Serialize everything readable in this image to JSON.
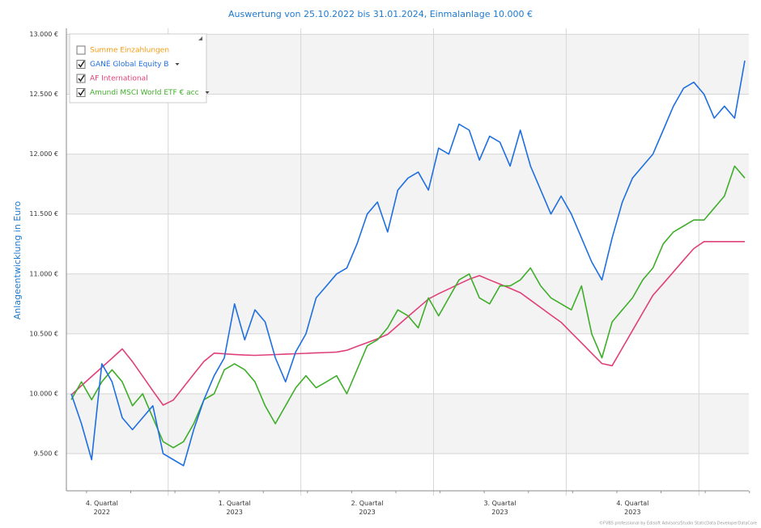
{
  "chart_data": {
    "type": "line",
    "title": "Auswertung von 25.10.2022 bis 31.01.2024, Einmalanlage 10.000 €",
    "y_label": "Anlageentwicklung  in Euro",
    "footer": "©FVBS professional by Edisoft Advisors/Studio StaticData DeveloperDataCore",
    "categories": [
      null,
      null,
      null,
      "4. Quartal 2022",
      null,
      null,
      null,
      null,
      null,
      null,
      null,
      null,
      null,
      null,
      null,
      null,
      "1. Quartal 2023",
      null,
      null,
      null,
      null,
      null,
      null,
      null,
      null,
      null,
      null,
      null,
      null,
      "2. Quartal 2023",
      null,
      null,
      null,
      null,
      null,
      null,
      null,
      null,
      null,
      null,
      null,
      null,
      "3. Quartal 2023",
      null,
      null,
      null,
      null,
      null,
      null,
      null,
      null,
      null,
      null,
      null,
      null,
      "4. Quartal 2023",
      null,
      null,
      null,
      null,
      null,
      null,
      null,
      null,
      null,
      null,
      null
    ],
    "ylim": [
      9190,
      13050
    ],
    "yticks": [
      {
        "value": 9500,
        "label": "9.500 €"
      },
      {
        "value": 10000,
        "label": "10.000 €"
      },
      {
        "value": 10500,
        "label": "10.500 €"
      },
      {
        "value": 11000,
        "label": "11.000 €"
      },
      {
        "value": 11500,
        "label": "11.500 €"
      },
      {
        "value": 12000,
        "label": "12.000 €"
      },
      {
        "value": 12500,
        "label": "12.500 €"
      },
      {
        "value": 13000,
        "label": "13.000 €"
      }
    ],
    "grid": true,
    "legend": "upper left",
    "series": [
      {
        "name": "Summe Einzahlungen",
        "color": "#f39c12",
        "visible": false,
        "menu": false,
        "values": [
          null,
          null,
          null,
          null,
          null,
          null,
          null,
          null,
          null,
          null,
          null,
          null,
          null,
          null,
          null,
          null,
          null,
          null,
          null,
          null,
          null,
          null,
          null,
          null,
          null,
          null,
          null,
          null,
          null,
          null,
          null,
          null,
          null,
          null,
          null,
          null,
          null,
          null,
          null,
          null,
          null,
          null,
          null,
          null,
          null,
          null,
          null,
          null,
          null,
          null,
          null,
          null,
          null,
          null,
          null,
          null,
          null,
          null,
          null,
          null,
          null,
          null,
          null,
          null,
          null,
          null,
          null
        ]
      },
      {
        "name": "GANÉ Global Equity B",
        "color": "#1f6fe0",
        "visible": true,
        "menu": true,
        "values": [
          10000,
          9750,
          9450,
          10250,
          10100,
          9800,
          9700,
          9800,
          9900,
          9500,
          9450,
          9400,
          9700,
          9950,
          10150,
          10300,
          10750,
          10450,
          10700,
          10600,
          10300,
          10100,
          10350,
          10500,
          10800,
          10900,
          11000,
          11050,
          11250,
          11500,
          11600,
          11350,
          11700,
          11800,
          11850,
          11700,
          12050,
          12000,
          12250,
          12200,
          11950,
          12150,
          12100,
          11900,
          12200,
          11900,
          11700,
          11500,
          11650,
          11500,
          11300,
          11100,
          10950,
          11300,
          11600,
          11800,
          11900,
          12000,
          12200,
          12400,
          12550,
          12600,
          12500,
          12300,
          12400,
          12300,
          12780
        ]
      },
      {
        "name": "AF International",
        "color": "#e0407a",
        "visible": true,
        "menu": false,
        "values": [
          9990,
          10067,
          10144,
          10220,
          10297,
          10374,
          10268,
          10147,
          10025,
          9905,
          9947,
          10055,
          10163,
          10270,
          10339,
          10333,
          10328,
          10323,
          10320,
          10324,
          10327,
          10331,
          10334,
          10337,
          10341,
          10344,
          10348,
          10363,
          10395,
          10427,
          10459,
          10496,
          10570,
          10644,
          10717,
          10791,
          10835,
          10875,
          10916,
          10956,
          10986,
          10950,
          10915,
          10880,
          10843,
          10781,
          10719,
          10657,
          10596,
          10510,
          10424,
          10338,
          10252,
          10234,
          10381,
          10528,
          10675,
          10822,
          10919,
          11017,
          11115,
          11212,
          11270,
          11270,
          11270,
          11270,
          11270
        ]
      },
      {
        "name": "Amundi MSCI World ETF € acc",
        "color": "#3fae2a",
        "visible": true,
        "menu": true,
        "values": [
          9950,
          10100,
          9950,
          10100,
          10200,
          10100,
          9900,
          10000,
          9800,
          9600,
          9550,
          9600,
          9750,
          9950,
          10000,
          10200,
          10250,
          10200,
          10100,
          9900,
          9750,
          9900,
          10050,
          10150,
          10050,
          10100,
          10150,
          10000,
          10200,
          10400,
          10450,
          10550,
          10700,
          10650,
          10550,
          10800,
          10650,
          10800,
          10950,
          11000,
          10800,
          10750,
          10900,
          10900,
          10950,
          11050,
          10900,
          10800,
          10750,
          10700,
          10900,
          10500,
          10300,
          10600,
          10700,
          10800,
          10950,
          11050,
          11250,
          11350,
          11400,
          11450,
          11450,
          11550,
          11650,
          11900,
          11800
        ]
      }
    ]
  }
}
